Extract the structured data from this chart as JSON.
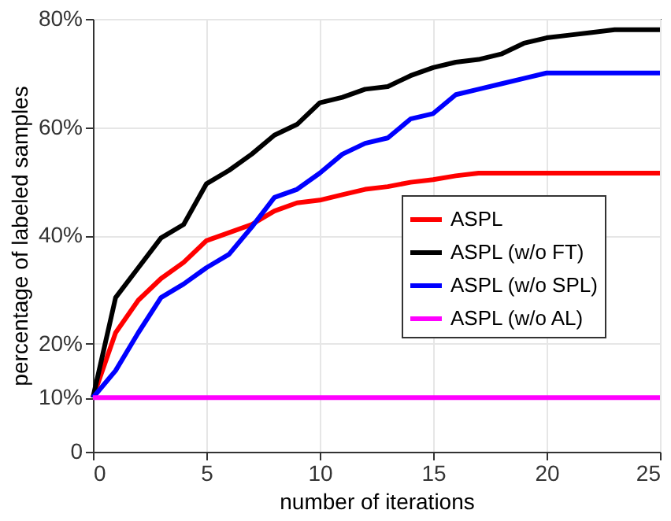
{
  "chart_data": {
    "type": "line",
    "xlabel": "number of iterations",
    "ylabel": "percentage of labeled samples",
    "x": [
      0,
      1,
      2,
      3,
      4,
      5,
      6,
      7,
      8,
      9,
      10,
      11,
      12,
      13,
      14,
      15,
      16,
      17,
      18,
      19,
      20,
      21,
      22,
      23,
      24,
      25
    ],
    "series": [
      {
        "name": "ASPL",
        "color": "#ff0000",
        "values": [
          10,
          22,
          28,
          32,
          35,
          39,
          40.5,
          42,
          44.5,
          46,
          46.5,
          47.5,
          48.5,
          49,
          49.8,
          50.3,
          51,
          51.5,
          51.5,
          51.5,
          51.5,
          51.5,
          51.5,
          51.5,
          51.5,
          51.5
        ]
      },
      {
        "name": "ASPL (w/o FT)",
        "color": "#000000",
        "values": [
          10,
          28.5,
          34,
          39.5,
          42,
          49.5,
          52,
          55,
          58.5,
          60.5,
          64.5,
          65.5,
          67,
          67.5,
          69.5,
          71,
          72,
          72.5,
          73.5,
          75.5,
          76.5,
          77,
          77.5,
          78,
          78,
          78
        ]
      },
      {
        "name": "ASPL (w/o SPL)",
        "color": "#0000ff",
        "values": [
          10,
          15,
          22,
          28.5,
          31,
          34,
          36.5,
          41.5,
          47,
          48.5,
          51.5,
          55,
          57,
          58,
          61.5,
          62.5,
          66,
          67,
          68,
          69,
          70,
          70,
          70,
          70,
          70,
          70
        ]
      },
      {
        "name": "ASPL (w/o AL)",
        "color": "#ff00ff",
        "values": [
          10,
          10,
          10,
          10,
          10,
          10,
          10,
          10,
          10,
          10,
          10,
          10,
          10,
          10,
          10,
          10,
          10,
          10,
          10,
          10,
          10,
          10,
          10,
          10,
          10,
          10
        ]
      }
    ],
    "xlim": [
      0,
      25
    ],
    "xticks": [
      0,
      5,
      10,
      15,
      20,
      25
    ],
    "ylim": [
      0,
      80
    ],
    "yticks": [
      {
        "value": 0,
        "label": "0"
      },
      {
        "value": 10,
        "label": "10%"
      },
      {
        "value": 20,
        "label": "20%"
      },
      {
        "value": 40,
        "label": "40%"
      },
      {
        "value": 60,
        "label": "60%"
      },
      {
        "value": 80,
        "label": "80%"
      }
    ],
    "grid": true,
    "legend": "bottom right",
    "marker": "none",
    "line_style": "solid"
  }
}
